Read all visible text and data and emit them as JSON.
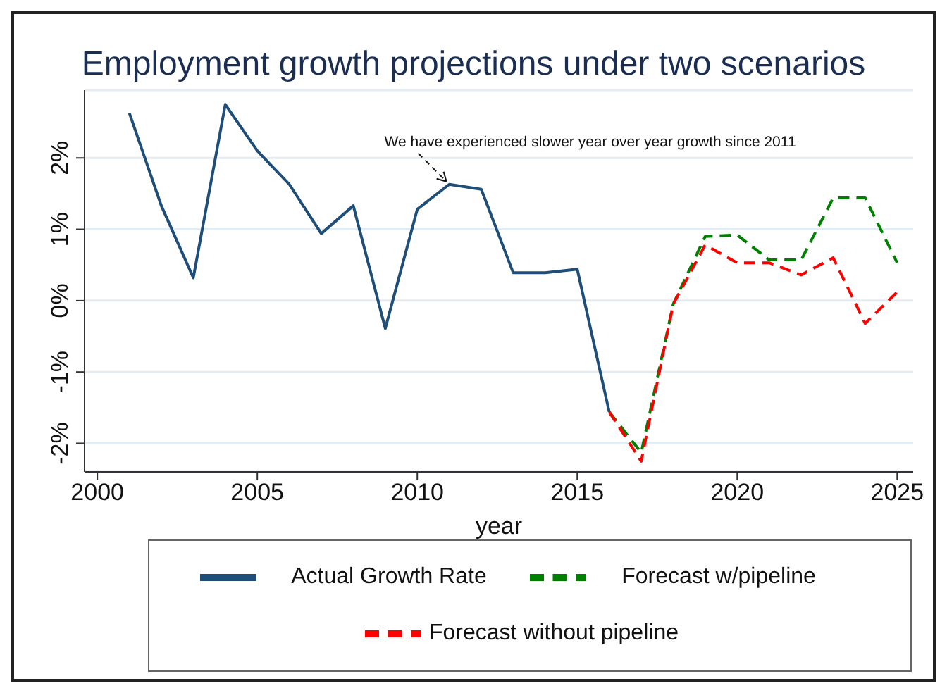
{
  "chart_data": {
    "type": "line",
    "title": "Employment growth projections under two scenarios",
    "xlabel": "year",
    "x": [
      2001,
      2002,
      2003,
      2004,
      2005,
      2006,
      2007,
      2008,
      2009,
      2010,
      2011,
      2012,
      2013,
      2014,
      2015,
      2016,
      2017,
      2018,
      2019,
      2020,
      2021,
      2022,
      2023,
      2024,
      2025
    ],
    "series": [
      {
        "name": "Actual Growth Rate",
        "color": "#1f4e79",
        "line_style": "solid",
        "values": [
          2.63,
          1.33,
          0.32,
          2.75,
          2.1,
          1.63,
          0.94,
          1.33,
          -0.39,
          1.28,
          1.63,
          1.56,
          0.39,
          0.39,
          0.44,
          -1.56,
          null,
          null,
          null,
          null,
          null,
          null,
          null,
          null,
          null
        ]
      },
      {
        "name": "Forecast w/pipeline",
        "color": "#008000",
        "line_style": "dashed",
        "values": [
          null,
          null,
          null,
          null,
          null,
          null,
          null,
          null,
          null,
          null,
          null,
          null,
          null,
          null,
          null,
          -1.56,
          -2.13,
          -0.05,
          0.9,
          0.92,
          0.57,
          0.57,
          1.44,
          1.44,
          0.53
        ]
      },
      {
        "name": "Forecast without pipeline",
        "color": "#ff0000",
        "line_style": "dashed",
        "values": [
          null,
          null,
          null,
          null,
          null,
          null,
          null,
          null,
          null,
          null,
          null,
          null,
          null,
          null,
          null,
          -1.56,
          -2.25,
          -0.05,
          0.78,
          0.53,
          0.53,
          0.36,
          0.6,
          -0.32,
          0.12
        ]
      }
    ],
    "xlim": [
      1999.6,
      2025.5
    ],
    "xticks": [
      2000,
      2005,
      2010,
      2015,
      2020,
      2025
    ],
    "ylim": [
      -2.4,
      2.95
    ],
    "yticks": [
      {
        "value": -2,
        "label": "-2%"
      },
      {
        "value": -1,
        "label": "-1%"
      },
      {
        "value": 0,
        "label": "0%"
      },
      {
        "value": 1,
        "label": "1%"
      },
      {
        "value": 2,
        "label": "2%"
      }
    ],
    "annotations": [
      {
        "text": "We have experienced slower year over year growth since 2011",
        "x": 2011,
        "y": 1.63
      }
    ],
    "grid": "y",
    "legend": "bottom",
    "marker": "none"
  }
}
